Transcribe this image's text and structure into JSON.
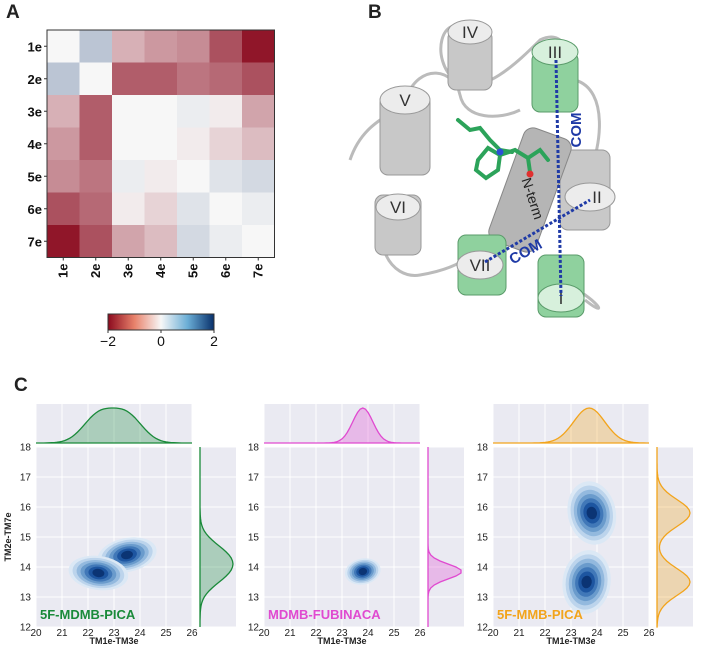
{
  "panels": {
    "a": "A",
    "b": "B",
    "c": "C"
  },
  "heatmap": {
    "rows": [
      "1e",
      "2e",
      "3e",
      "4e",
      "5e",
      "6e",
      "7e"
    ],
    "cols": [
      "1e",
      "2e",
      "3e",
      "4e",
      "5e",
      "6e",
      "7e"
    ],
    "values": [
      [
        0.0,
        0.5,
        -0.6,
        -0.8,
        -0.9,
        -1.4,
        -1.9
      ],
      [
        0.5,
        0.0,
        -1.3,
        -1.3,
        -1.1,
        -1.2,
        -1.4
      ],
      [
        -0.6,
        -1.3,
        0.0,
        0.0,
        0.1,
        -0.1,
        -0.7
      ],
      [
        -0.8,
        -1.3,
        0.0,
        0.0,
        -0.1,
        -0.3,
        -0.5
      ],
      [
        -0.9,
        -1.1,
        0.1,
        -0.1,
        0.0,
        0.2,
        0.3
      ],
      [
        -1.4,
        -1.2,
        -0.1,
        -0.3,
        0.2,
        0.0,
        0.1
      ],
      [
        -1.9,
        -1.4,
        -0.7,
        -0.5,
        0.3,
        0.1,
        0.0
      ]
    ],
    "colorbar": {
      "min": -2,
      "max": 2,
      "ticks": [
        "−2",
        "0",
        "2"
      ]
    },
    "colors": {
      "neg": "#8b0a1e",
      "mid": "#f7f7f7",
      "pos": "#08306b"
    }
  },
  "structure": {
    "helices": [
      "I",
      "II",
      "III",
      "IV",
      "V",
      "VI",
      "VII"
    ],
    "labels": {
      "nterm": "N-term",
      "com1": "COM",
      "com2": "COM"
    },
    "colors": {
      "helix_gray": "#c8c8c8",
      "helix_green": "#8fd19e",
      "com_line": "#1f3aa6",
      "ligand": "#2ca35a"
    }
  },
  "chart_data": [
    {
      "type": "heatmap",
      "title": "",
      "rows": [
        "1e",
        "2e",
        "3e",
        "4e",
        "5e",
        "6e",
        "7e"
      ],
      "cols": [
        "1e",
        "2e",
        "3e",
        "4e",
        "5e",
        "6e",
        "7e"
      ],
      "vmin": -2,
      "vmax": 2
    },
    {
      "type": "scatter",
      "name": "5F-MDMB-PICA",
      "xlabel": "TM1e-TM3e",
      "ylabel": "TM2e-TM7e",
      "xlim": [
        20,
        26
      ],
      "ylim": [
        12,
        18
      ],
      "xticks": [
        "20",
        "21",
        "22",
        "23",
        "24",
        "25",
        "26"
      ],
      "yticks": [
        "12",
        "13",
        "14",
        "15",
        "16",
        "17",
        "18"
      ],
      "color": "#1a8a3a",
      "density_peaks": [
        [
          23.5,
          14.4
        ],
        [
          22.4,
          13.8
        ]
      ]
    },
    {
      "type": "scatter",
      "name": "MDMB-FUBINACA",
      "xlabel": "TM1e-TM3e",
      "ylabel": "",
      "xlim": [
        20,
        26
      ],
      "ylim": [
        12,
        18
      ],
      "xticks": [
        "20",
        "21",
        "22",
        "23",
        "24",
        "25",
        "26"
      ],
      "yticks": [
        "12",
        "13",
        "14",
        "15",
        "16",
        "17",
        "18"
      ],
      "color": "#e04ad0",
      "density_peaks": [
        [
          23.8,
          13.85
        ]
      ]
    },
    {
      "type": "scatter",
      "name": "5F-MMB-PICA",
      "xlabel": "TM1e-TM3e",
      "ylabel": "",
      "xlim": [
        20,
        26
      ],
      "ylim": [
        12,
        18
      ],
      "xticks": [
        "20",
        "21",
        "22",
        "23",
        "24",
        "25",
        "26"
      ],
      "yticks": [
        "12",
        "13",
        "14",
        "15",
        "16",
        "17",
        "18"
      ],
      "color": "#f2a41c",
      "density_peaks": [
        [
          23.8,
          15.8
        ],
        [
          23.6,
          13.5
        ]
      ]
    }
  ]
}
